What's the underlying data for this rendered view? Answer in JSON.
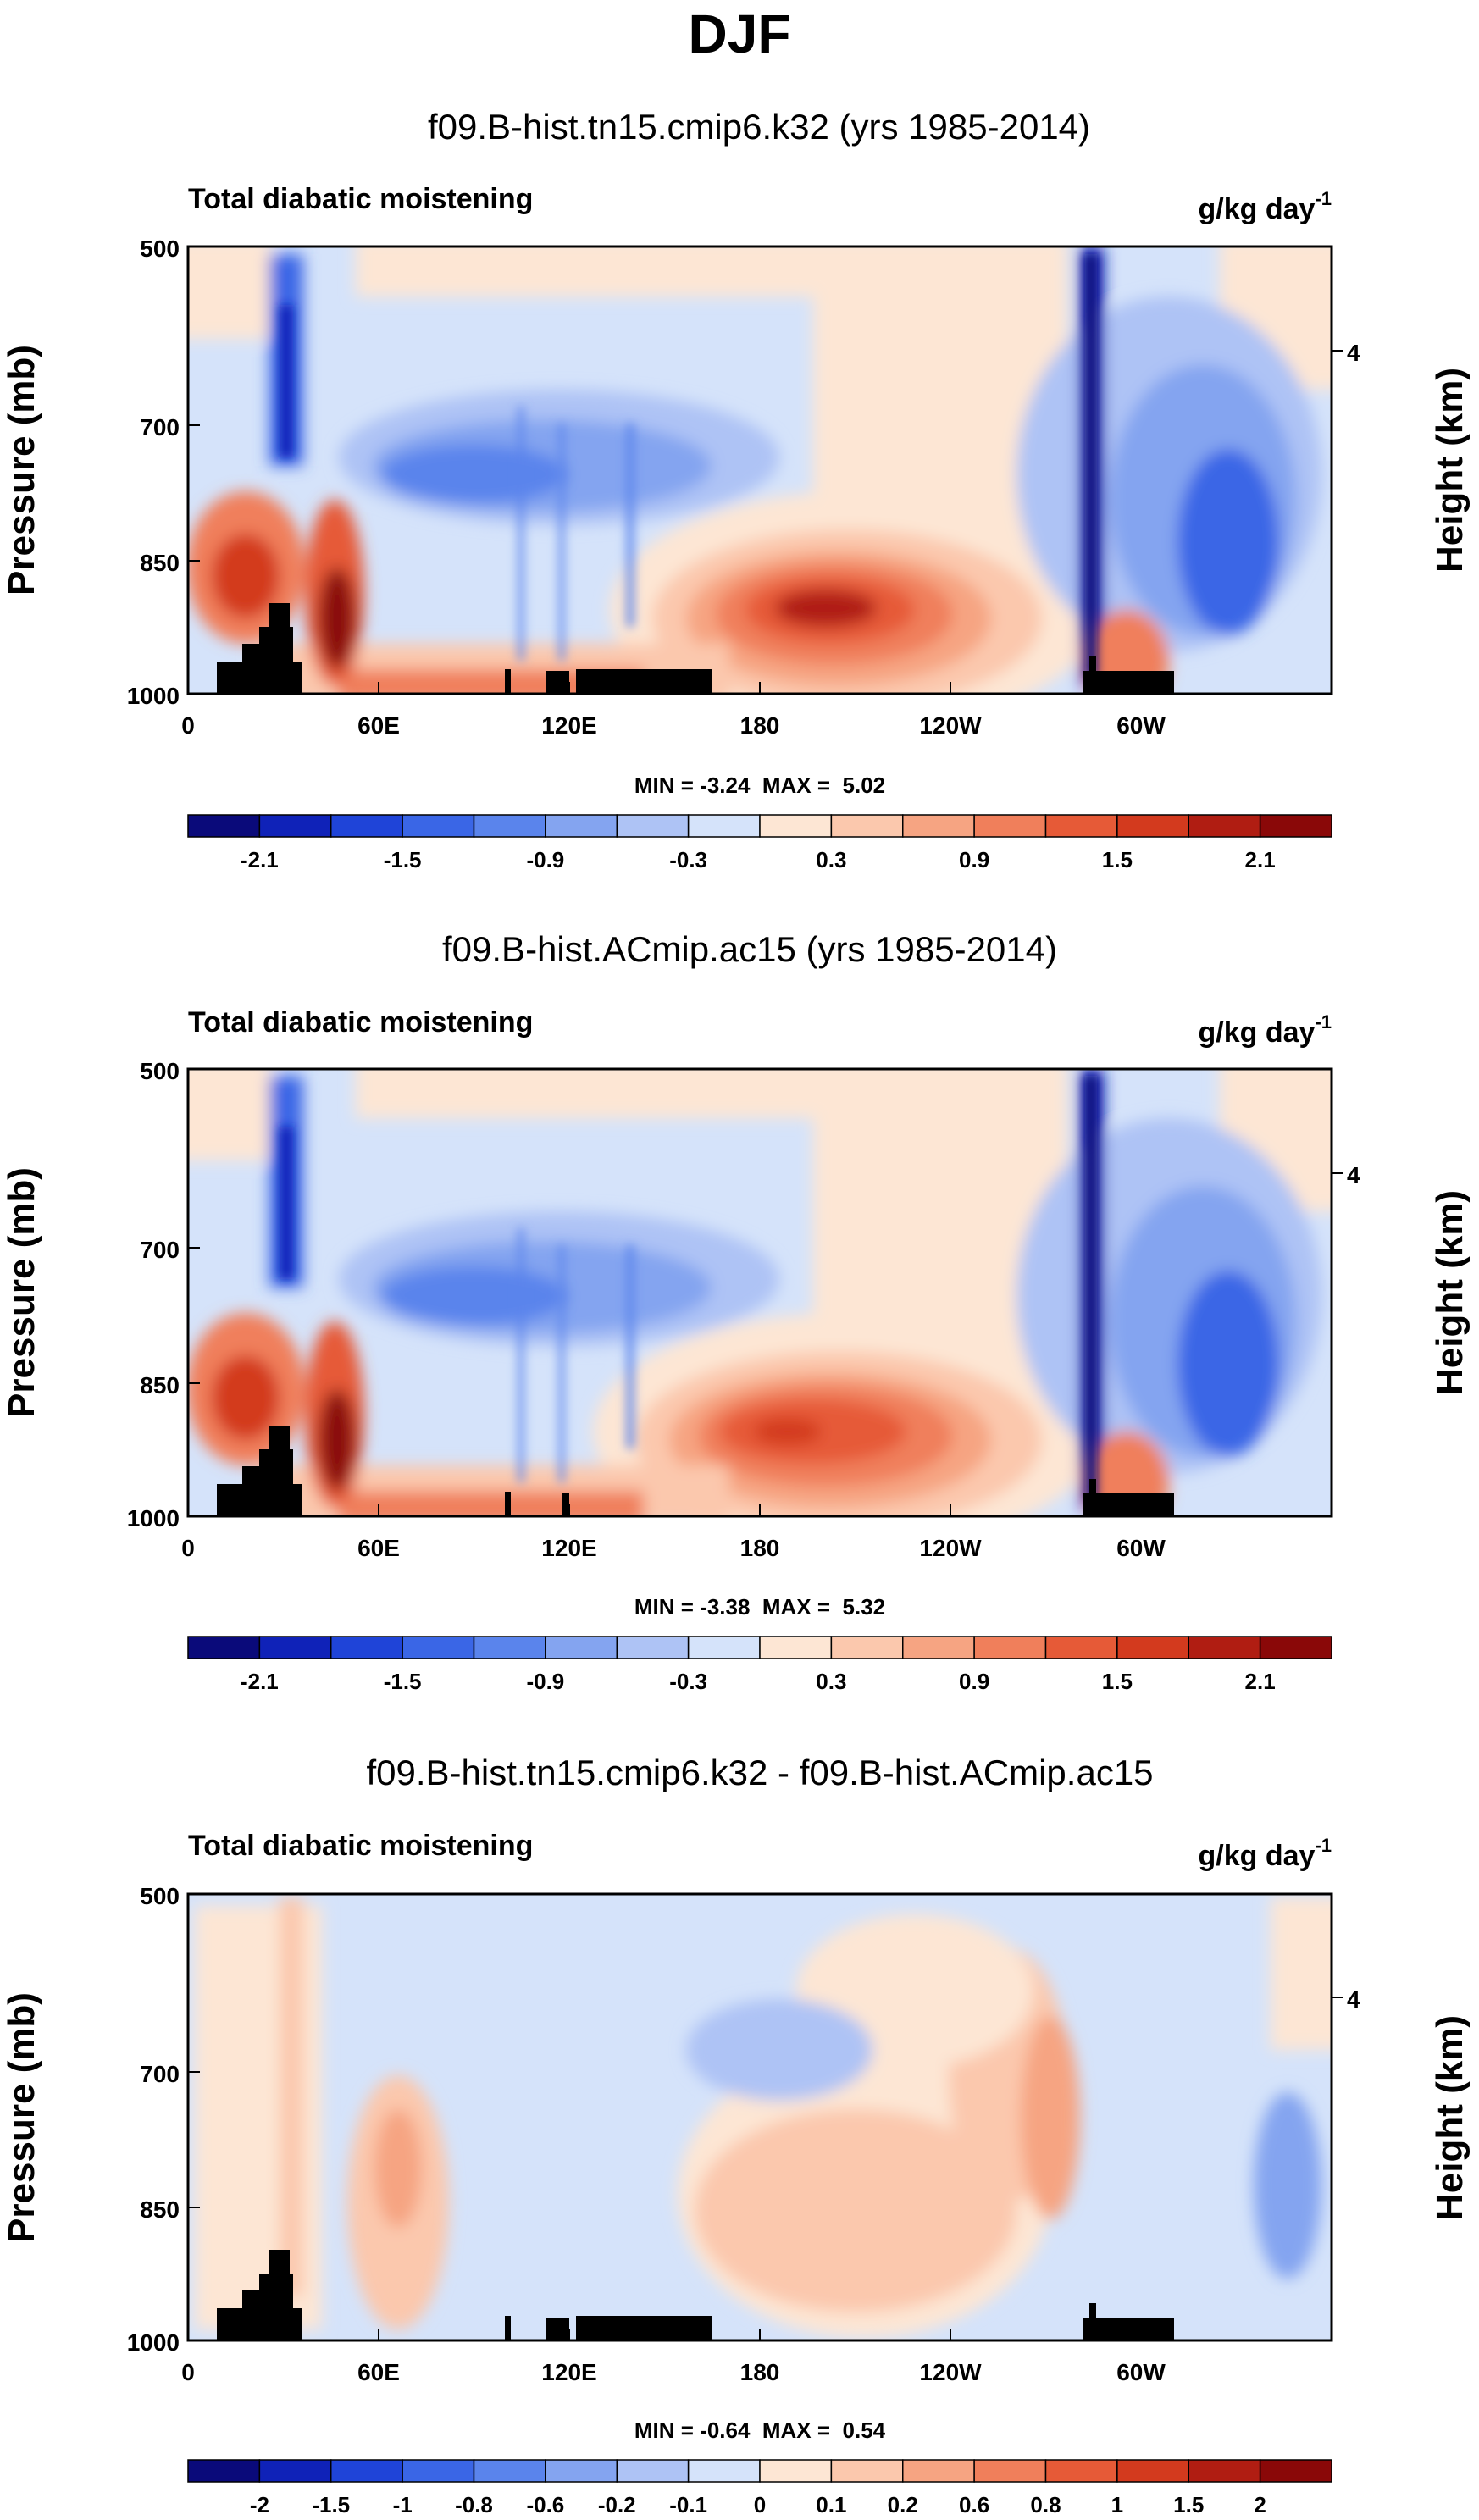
{
  "figure_title": "DJF",
  "chart_data": [
    {
      "type": "heatmap",
      "title": "f09.B-hist.tn15.cmip6.k32 (yrs 1985-2014)",
      "left_label": "Total diabatic moistening",
      "units": "g/kg day",
      "units_sup": "-1",
      "ylabel": "Pressure (mb)",
      "ylabel_right": "Height (km)",
      "yticks": [
        "500",
        "700",
        "850",
        "1000"
      ],
      "yticks_right": [
        "4"
      ],
      "xticks": [
        "0",
        "60E",
        "120E",
        "180",
        "120W",
        "60W"
      ],
      "stats": "MIN = -3.24  MAX =  5.02",
      "colorbar_labels": [
        "-2.1",
        "-1.5",
        "-0.9",
        "-0.3",
        "0.3",
        "0.9",
        "1.5",
        "2.1"
      ],
      "colorbar_levels": [
        -2.4,
        -2.1,
        -1.8,
        -1.5,
        -1.2,
        -0.9,
        -0.6,
        -0.3,
        0.0,
        0.3,
        0.6,
        0.9,
        1.2,
        1.5,
        1.8,
        2.1,
        2.4
      ]
    },
    {
      "type": "heatmap",
      "title": "f09.B-hist.ACmip.ac15 (yrs 1985-2014)",
      "left_label": "Total diabatic moistening",
      "units": "g/kg day",
      "units_sup": "-1",
      "ylabel": "Pressure (mb)",
      "ylabel_right": "Height (km)",
      "yticks": [
        "500",
        "700",
        "850",
        "1000"
      ],
      "yticks_right": [
        "4"
      ],
      "xticks": [
        "0",
        "60E",
        "120E",
        "180",
        "120W",
        "60W"
      ],
      "stats": "MIN = -3.38  MAX =  5.32",
      "colorbar_labels": [
        "-2.1",
        "-1.5",
        "-0.9",
        "-0.3",
        "0.3",
        "0.9",
        "1.5",
        "2.1"
      ],
      "colorbar_levels": [
        -2.4,
        -2.1,
        -1.8,
        -1.5,
        -1.2,
        -0.9,
        -0.6,
        -0.3,
        0.0,
        0.3,
        0.6,
        0.9,
        1.2,
        1.5,
        1.8,
        2.1,
        2.4
      ]
    },
    {
      "type": "heatmap",
      "title": "f09.B-hist.tn15.cmip6.k32 - f09.B-hist.ACmip.ac15",
      "left_label": "Total diabatic moistening",
      "units": "g/kg day",
      "units_sup": "-1",
      "ylabel": "Pressure (mb)",
      "ylabel_right": "Height (km)",
      "yticks": [
        "500",
        "700",
        "850",
        "1000"
      ],
      "yticks_right": [
        "4"
      ],
      "xticks": [
        "0",
        "60E",
        "120E",
        "180",
        "120W",
        "60W"
      ],
      "stats": "MIN = -0.64  MAX =  0.54",
      "colorbar_labels": [
        "-2",
        "-1.5",
        "-1",
        "-0.8",
        "-0.6",
        "-0.2",
        "-0.1",
        "0",
        "0.1",
        "0.2",
        "0.6",
        "0.8",
        "1",
        "1.5",
        "2"
      ],
      "colorbar_levels": [
        -2.5,
        -2,
        -1.5,
        -1,
        -0.8,
        -0.6,
        -0.2,
        -0.1,
        0,
        0.1,
        0.2,
        0.6,
        0.8,
        1,
        1.5,
        2,
        2.5
      ]
    }
  ],
  "colors": {
    "palette": [
      "#0a0a7a",
      "#0f22b8",
      "#1f44d8",
      "#3a66e6",
      "#5a84ec",
      "#84a4f0",
      "#aec3f5",
      "#d5e3fa",
      "#fde6d4",
      "#fbc8ad",
      "#f6a482",
      "#f07f5b",
      "#e65a37",
      "#d33a1e",
      "#b01d12",
      "#8a0808"
    ],
    "topography": "#000000",
    "axis": "#000000"
  }
}
